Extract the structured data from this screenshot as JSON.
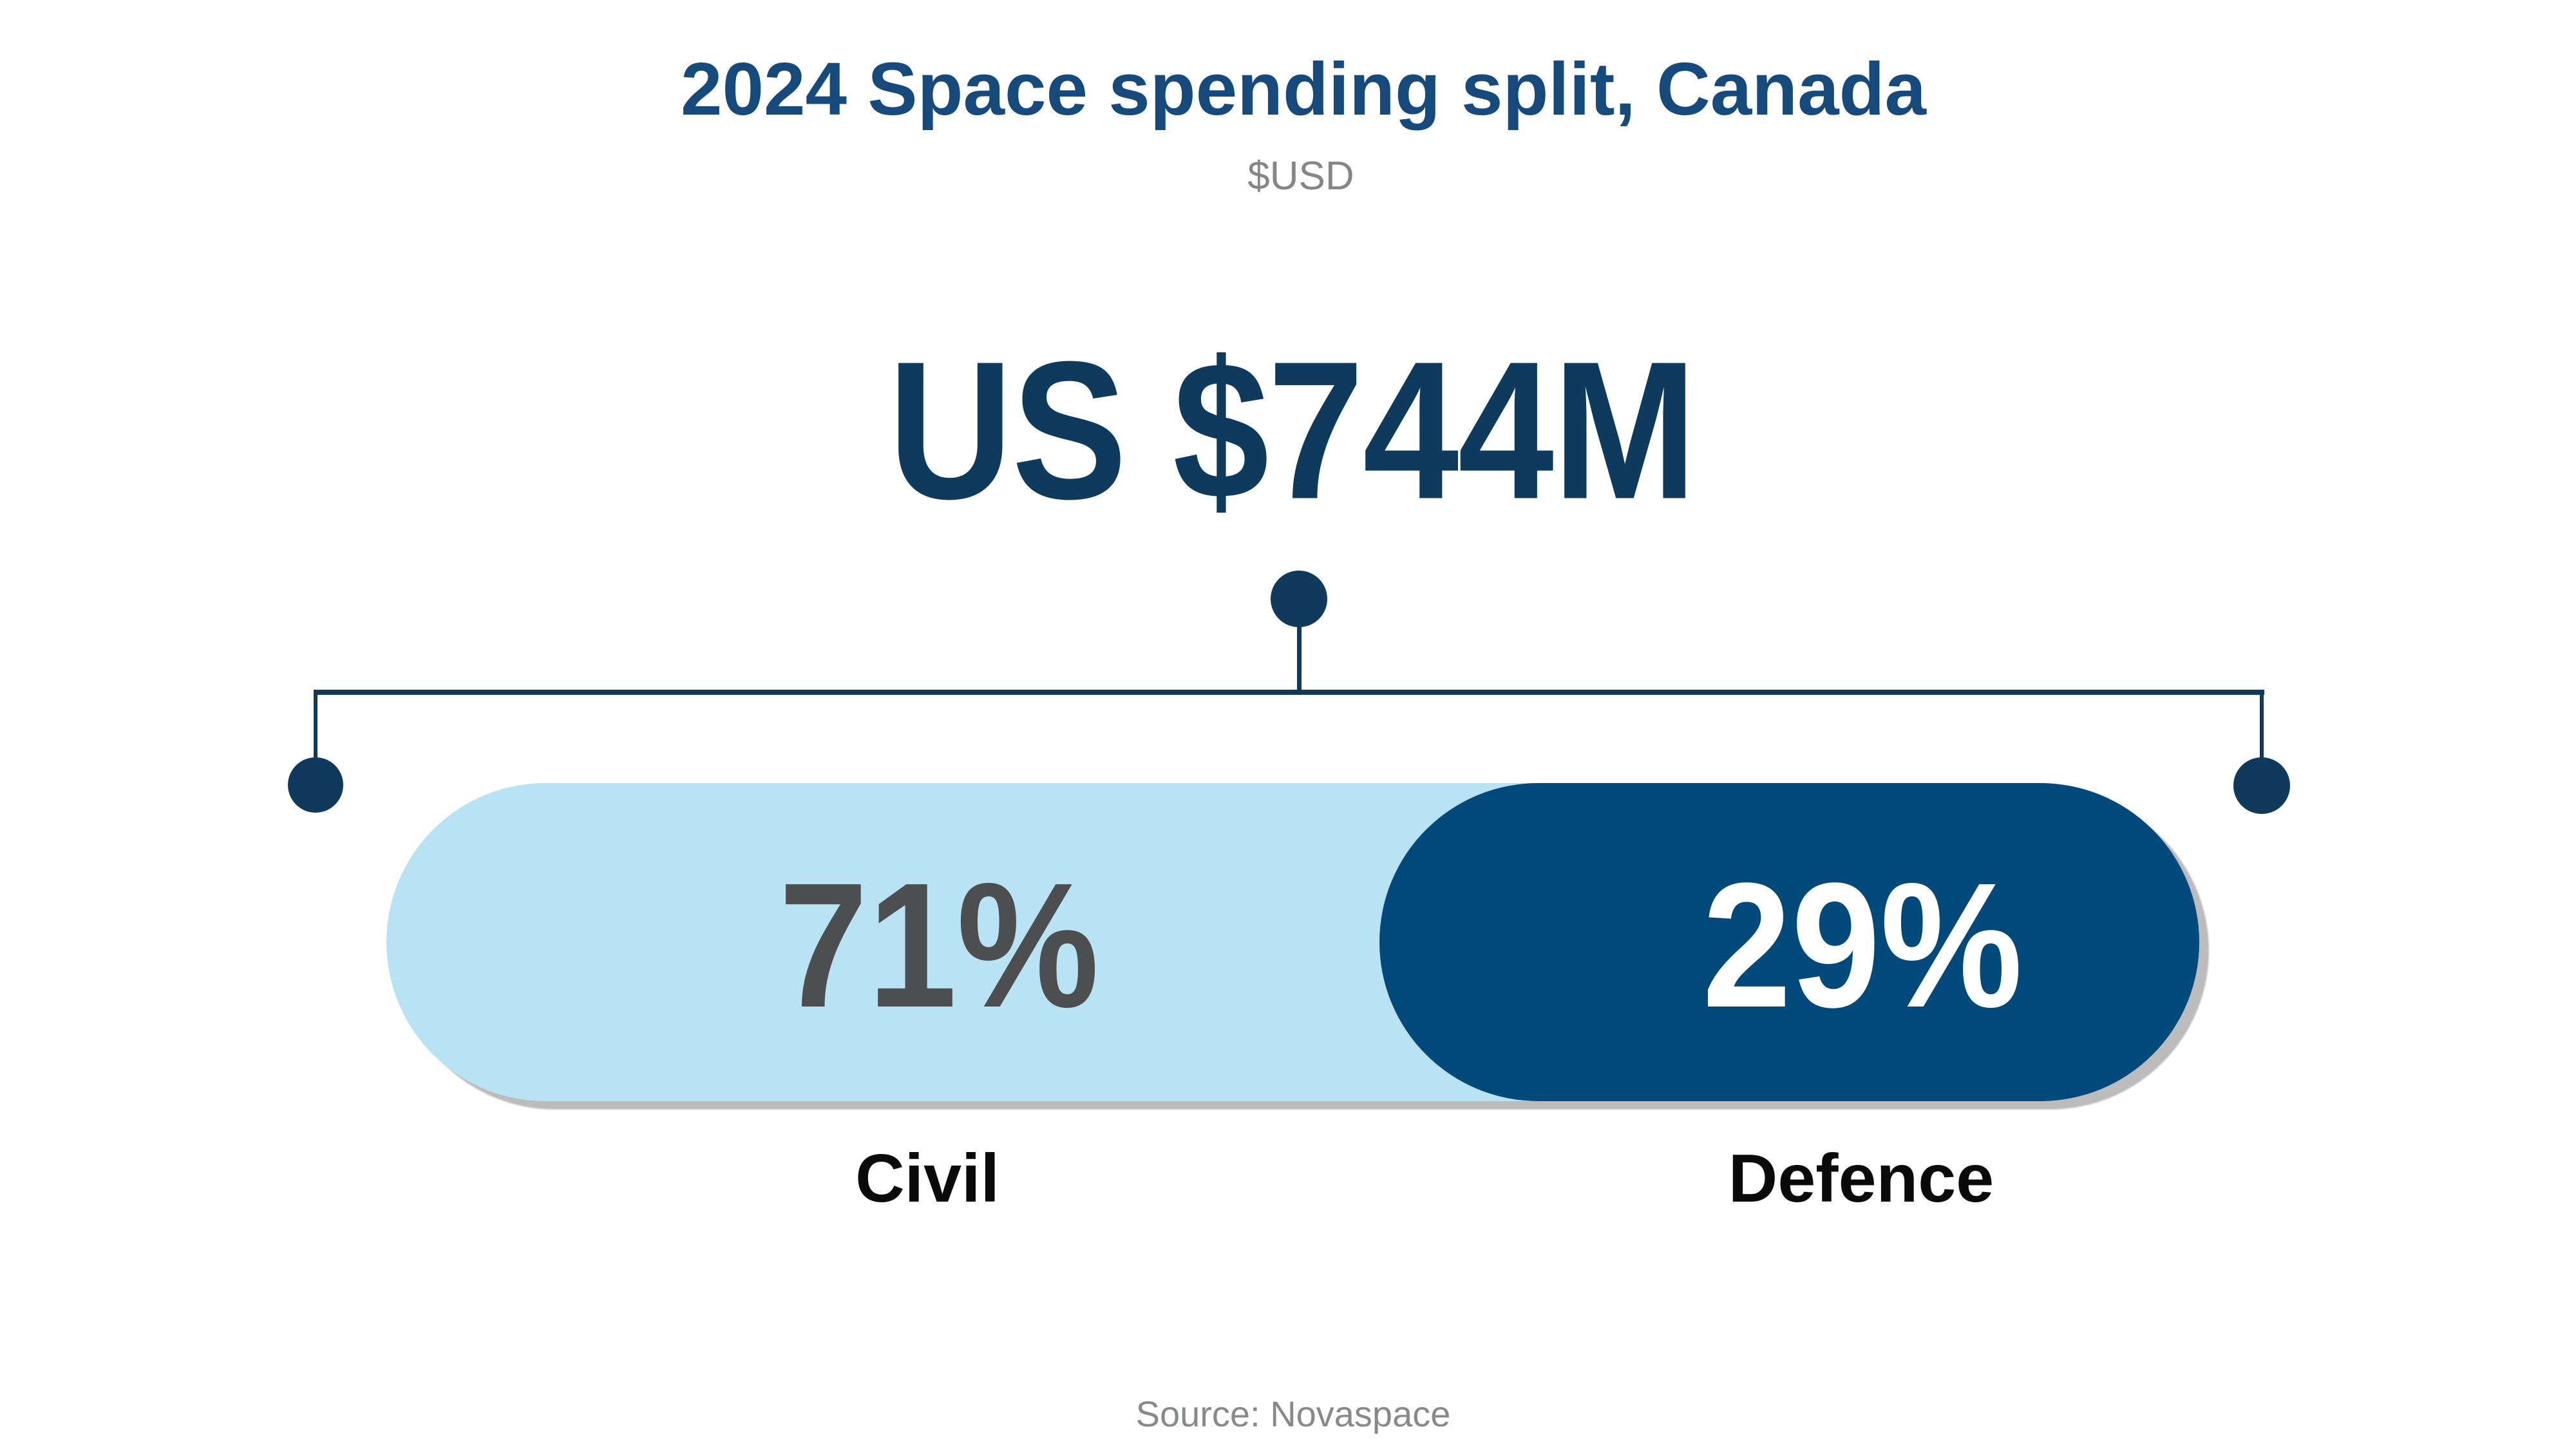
{
  "chart_data": {
    "type": "bar",
    "variant": "horizontal-split-pill-infographic",
    "title": "2024 Space spending split, Canada",
    "subtitle": "$USD",
    "total_label": "US $744M",
    "total_value_million_usd": 744,
    "categories": [
      "Civil",
      "Defence"
    ],
    "values": [
      71,
      29
    ],
    "value_labels": [
      "71%",
      "29%"
    ],
    "unit": "percent",
    "source": "Source: Novaspace",
    "legend": "none",
    "grid": false,
    "axes": "none",
    "layout_hints": {
      "total_connected_to_bar_by": "dot-and-bracket connector lines",
      "civil_segment_side": "left",
      "defence_segment_side": "right"
    },
    "colors": {
      "background": "#ffffff",
      "title_blue": "#174a7c",
      "subtitle_gray": "#848688",
      "total_navy": "#0e3a5e",
      "connector_navy": "#11395c",
      "civil_fill_light_blue": "#b9e2f4",
      "defence_fill_dark_blue": "#01497a",
      "civil_pct_text_gray": "#4d4e50",
      "defence_pct_text_white": "#ffffff",
      "category_label_black": "#0a0a0a",
      "source_gray": "#87898b",
      "bar_shadow_gray": "#bcbcbc"
    }
  }
}
